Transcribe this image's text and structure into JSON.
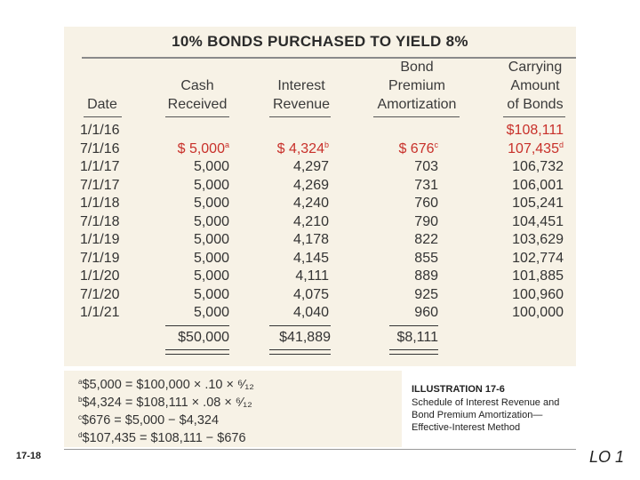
{
  "title": "10% BONDS PURCHASED TO YIELD 8%",
  "columns": [
    {
      "lines": [
        "Date"
      ]
    },
    {
      "lines": [
        "Cash",
        "Received"
      ]
    },
    {
      "lines": [
        "Interest",
        "Revenue"
      ]
    },
    {
      "lines": [
        "Bond",
        "Premium",
        "Amortization"
      ]
    },
    {
      "lines": [
        "Carrying",
        "Amount",
        "of Bonds"
      ]
    }
  ],
  "rows": [
    {
      "date": "1/1/16",
      "cash": "",
      "interest": "",
      "amort": "",
      "carrying": "$108,111"
    },
    {
      "date": "7/1/16",
      "cash": "$  5,000",
      "cash_sup": "a",
      "interest": "$  4,324",
      "interest_sup": "b",
      "amort": "$  676",
      "amort_sup": "c",
      "carrying": "107,435",
      "carrying_sup": "d"
    },
    {
      "date": "1/1/17",
      "cash": "5,000",
      "interest": "4,297",
      "amort": "703",
      "carrying": "106,732"
    },
    {
      "date": "7/1/17",
      "cash": "5,000",
      "interest": "4,269",
      "amort": "731",
      "carrying": "106,001"
    },
    {
      "date": "1/1/18",
      "cash": "5,000",
      "interest": "4,240",
      "amort": "760",
      "carrying": "105,241"
    },
    {
      "date": "7/1/18",
      "cash": "5,000",
      "interest": "4,210",
      "amort": "790",
      "carrying": "104,451"
    },
    {
      "date": "1/1/19",
      "cash": "5,000",
      "interest": "4,178",
      "amort": "822",
      "carrying": "103,629"
    },
    {
      "date": "7/1/19",
      "cash": "5,000",
      "interest": "4,145",
      "amort": "855",
      "carrying": "102,774"
    },
    {
      "date": "1/1/20",
      "cash": "5,000",
      "interest": "4,111",
      "amort": "889",
      "carrying": "101,885"
    },
    {
      "date": "7/1/20",
      "cash": "5,000",
      "interest": "4,075",
      "amort": "925",
      "carrying": "100,960"
    },
    {
      "date": "1/1/21",
      "cash": "5,000",
      "interest": "4,040",
      "amort": "960",
      "carrying": "100,000"
    }
  ],
  "totals": {
    "cash": "$50,000",
    "interest": "$41,889",
    "amort": "$8,111"
  },
  "footnotes": [
    {
      "mark": "a",
      "text": "$5,000 = $100,000 × .10 × ⁶⁄₁₂"
    },
    {
      "mark": "b",
      "text": "$4,324 = $108,111 × .08 × ⁶⁄₁₂"
    },
    {
      "mark": "c",
      "text": "$676 = $5,000 − $4,324"
    },
    {
      "mark": "d",
      "text": "$107,435 = $108,111 − $676"
    }
  ],
  "caption": {
    "title": "ILLUSTRATION 17-6",
    "lines": [
      "Schedule of Interest Revenue and",
      "Bond Premium Amortization—",
      "Effective-Interest Method"
    ]
  },
  "slide_number": "17-18",
  "lo_label": "LO 1",
  "colors": {
    "panel": "#f7f2e6",
    "highlight": "#c8302a"
  }
}
